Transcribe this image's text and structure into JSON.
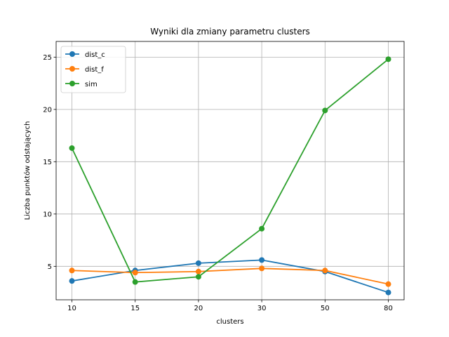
{
  "chart_data": {
    "type": "line",
    "title": "Wyniki dla zmiany parametru clusters",
    "xlabel": "clusters",
    "ylabel": "Liczba punktów odstających",
    "categories": [
      "10",
      "15",
      "20",
      "30",
      "50",
      "80"
    ],
    "ylim": [
      1.8,
      26.5
    ],
    "yticks": [
      "5",
      "10",
      "15",
      "20",
      "25"
    ],
    "grid": true,
    "legend_position": "top-left",
    "series": [
      {
        "name": "dist_c",
        "color": "#1f77b4",
        "values": [
          3.6,
          4.6,
          5.3,
          5.6,
          4.5,
          2.5
        ]
      },
      {
        "name": "dist_f",
        "color": "#ff7f0e",
        "values": [
          4.6,
          4.4,
          4.5,
          4.8,
          4.6,
          3.3
        ]
      },
      {
        "name": "sim",
        "color": "#2ca02c",
        "values": [
          16.3,
          3.5,
          4.0,
          8.6,
          19.9,
          24.8
        ]
      }
    ]
  }
}
